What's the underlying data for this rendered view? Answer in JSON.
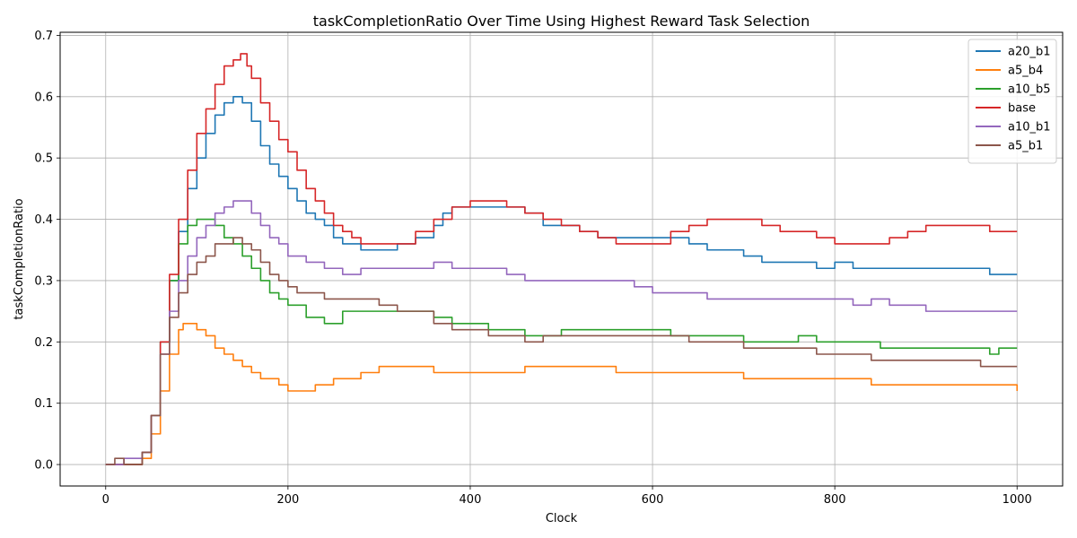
{
  "chart_data": {
    "type": "line",
    "title": "taskCompletionRatio Over Time Using Highest Reward Task Selection",
    "xlabel": "Clock",
    "ylabel": "taskCompletionRatio",
    "xlim": [
      -50,
      1050
    ],
    "ylim": [
      -0.035,
      0.705
    ],
    "xticks": [
      0,
      200,
      400,
      600,
      800,
      1000
    ],
    "yticks": [
      0.0,
      0.1,
      0.2,
      0.3,
      0.4,
      0.5,
      0.6,
      0.7
    ],
    "xtick_labels": [
      "0",
      "200",
      "400",
      "600",
      "800",
      "1000"
    ],
    "ytick_labels": [
      "0.0",
      "0.1",
      "0.2",
      "0.3",
      "0.4",
      "0.5",
      "0.6",
      "0.7"
    ],
    "grid": true,
    "legend_position": "top-right",
    "series": [
      {
        "name": "a20_b1",
        "color": "#1f77b4",
        "x": [
          0,
          30,
          40,
          50,
          60,
          70,
          80,
          90,
          100,
          110,
          120,
          130,
          140,
          145,
          150,
          160,
          170,
          180,
          190,
          200,
          210,
          220,
          230,
          240,
          250,
          260,
          270,
          280,
          290,
          300,
          320,
          340,
          360,
          370,
          380,
          400,
          420,
          440,
          460,
          480,
          500,
          520,
          540,
          560,
          600,
          620,
          640,
          660,
          680,
          700,
          720,
          740,
          760,
          780,
          800,
          820,
          840,
          860,
          900,
          940,
          960,
          970,
          1000
        ],
        "y": [
          0.0,
          0.0,
          0.02,
          0.08,
          0.2,
          0.3,
          0.38,
          0.45,
          0.5,
          0.54,
          0.57,
          0.59,
          0.6,
          0.6,
          0.59,
          0.56,
          0.52,
          0.49,
          0.47,
          0.45,
          0.43,
          0.41,
          0.4,
          0.39,
          0.37,
          0.36,
          0.36,
          0.35,
          0.35,
          0.35,
          0.36,
          0.37,
          0.39,
          0.41,
          0.42,
          0.42,
          0.42,
          0.42,
          0.41,
          0.39,
          0.39,
          0.38,
          0.37,
          0.37,
          0.37,
          0.37,
          0.36,
          0.35,
          0.35,
          0.34,
          0.33,
          0.33,
          0.33,
          0.32,
          0.33,
          0.32,
          0.32,
          0.32,
          0.32,
          0.32,
          0.32,
          0.31,
          0.31
        ]
      },
      {
        "name": "a5_b4",
        "color": "#ff7f0e",
        "x": [
          0,
          35,
          40,
          50,
          60,
          70,
          80,
          85,
          90,
          100,
          110,
          120,
          130,
          140,
          150,
          160,
          170,
          180,
          190,
          200,
          220,
          230,
          240,
          250,
          260,
          270,
          280,
          290,
          300,
          320,
          340,
          360,
          380,
          400,
          420,
          440,
          460,
          500,
          520,
          540,
          560,
          600,
          640,
          680,
          700,
          720,
          760,
          800,
          840,
          880,
          920,
          960,
          990,
          1000
        ],
        "y": [
          0.0,
          0.0,
          0.01,
          0.05,
          0.12,
          0.18,
          0.22,
          0.23,
          0.23,
          0.22,
          0.21,
          0.19,
          0.18,
          0.17,
          0.16,
          0.15,
          0.14,
          0.14,
          0.13,
          0.12,
          0.12,
          0.13,
          0.13,
          0.14,
          0.14,
          0.14,
          0.15,
          0.15,
          0.16,
          0.16,
          0.16,
          0.15,
          0.15,
          0.15,
          0.15,
          0.15,
          0.16,
          0.16,
          0.16,
          0.16,
          0.15,
          0.15,
          0.15,
          0.15,
          0.14,
          0.14,
          0.14,
          0.14,
          0.13,
          0.13,
          0.13,
          0.13,
          0.13,
          0.12
        ]
      },
      {
        "name": "a10_b5",
        "color": "#2ca02c",
        "x": [
          0,
          30,
          40,
          50,
          60,
          70,
          80,
          90,
          100,
          110,
          120,
          130,
          140,
          150,
          160,
          170,
          180,
          190,
          200,
          220,
          240,
          260,
          280,
          300,
          320,
          340,
          360,
          380,
          400,
          420,
          440,
          460,
          480,
          500,
          540,
          580,
          600,
          620,
          660,
          700,
          740,
          760,
          780,
          820,
          850,
          900,
          960,
          970,
          980,
          1000
        ],
        "y": [
          0.0,
          0.0,
          0.02,
          0.08,
          0.2,
          0.3,
          0.36,
          0.39,
          0.4,
          0.4,
          0.39,
          0.37,
          0.36,
          0.34,
          0.32,
          0.3,
          0.28,
          0.27,
          0.26,
          0.24,
          0.23,
          0.25,
          0.25,
          0.25,
          0.25,
          0.25,
          0.24,
          0.23,
          0.23,
          0.22,
          0.22,
          0.21,
          0.21,
          0.22,
          0.22,
          0.22,
          0.22,
          0.21,
          0.21,
          0.2,
          0.2,
          0.21,
          0.2,
          0.2,
          0.19,
          0.19,
          0.19,
          0.18,
          0.19,
          0.19
        ]
      },
      {
        "name": "base",
        "color": "#d62728",
        "x": [
          0,
          30,
          40,
          50,
          60,
          70,
          80,
          90,
          100,
          110,
          120,
          130,
          140,
          148,
          155,
          160,
          170,
          180,
          190,
          200,
          210,
          220,
          230,
          240,
          250,
          260,
          270,
          280,
          290,
          300,
          320,
          340,
          360,
          380,
          400,
          420,
          440,
          460,
          480,
          500,
          520,
          540,
          560,
          600,
          620,
          640,
          660,
          680,
          700,
          720,
          740,
          760,
          780,
          800,
          820,
          840,
          860,
          880,
          900,
          940,
          960,
          970,
          1000
        ],
        "y": [
          0.0,
          0.0,
          0.02,
          0.08,
          0.2,
          0.31,
          0.4,
          0.48,
          0.54,
          0.58,
          0.62,
          0.65,
          0.66,
          0.67,
          0.65,
          0.63,
          0.59,
          0.56,
          0.53,
          0.51,
          0.48,
          0.45,
          0.43,
          0.41,
          0.39,
          0.38,
          0.37,
          0.36,
          0.36,
          0.36,
          0.36,
          0.38,
          0.4,
          0.42,
          0.43,
          0.43,
          0.42,
          0.41,
          0.4,
          0.39,
          0.38,
          0.37,
          0.36,
          0.36,
          0.38,
          0.39,
          0.4,
          0.4,
          0.4,
          0.39,
          0.38,
          0.38,
          0.37,
          0.36,
          0.36,
          0.36,
          0.37,
          0.38,
          0.39,
          0.39,
          0.39,
          0.38,
          0.38
        ]
      },
      {
        "name": "a10_b1",
        "color": "#9467bd",
        "x": [
          0,
          20,
          30,
          40,
          50,
          60,
          70,
          80,
          90,
          100,
          110,
          120,
          130,
          140,
          150,
          160,
          170,
          180,
          190,
          200,
          220,
          240,
          260,
          280,
          300,
          320,
          340,
          360,
          380,
          400,
          420,
          440,
          460,
          480,
          520,
          560,
          580,
          600,
          620,
          660,
          700,
          720,
          760,
          800,
          820,
          840,
          860,
          900,
          940,
          980,
          1000
        ],
        "y": [
          0.0,
          0.01,
          0.01,
          0.02,
          0.08,
          0.18,
          0.25,
          0.3,
          0.34,
          0.37,
          0.39,
          0.41,
          0.42,
          0.43,
          0.43,
          0.41,
          0.39,
          0.37,
          0.36,
          0.34,
          0.33,
          0.32,
          0.31,
          0.32,
          0.32,
          0.32,
          0.32,
          0.33,
          0.32,
          0.32,
          0.32,
          0.31,
          0.3,
          0.3,
          0.3,
          0.3,
          0.29,
          0.28,
          0.28,
          0.27,
          0.27,
          0.27,
          0.27,
          0.27,
          0.26,
          0.27,
          0.26,
          0.25,
          0.25,
          0.25,
          0.25
        ]
      },
      {
        "name": "a5_b1",
        "color": "#8c564b",
        "x": [
          0,
          10,
          20,
          30,
          40,
          50,
          60,
          70,
          80,
          90,
          100,
          110,
          120,
          130,
          140,
          150,
          160,
          170,
          180,
          190,
          200,
          210,
          220,
          240,
          260,
          280,
          300,
          320,
          340,
          360,
          380,
          400,
          420,
          440,
          460,
          480,
          500,
          560,
          600,
          620,
          640,
          680,
          700,
          740,
          780,
          820,
          840,
          880,
          920,
          950,
          960,
          1000
        ],
        "y": [
          0.0,
          0.01,
          0.0,
          0.0,
          0.02,
          0.08,
          0.18,
          0.24,
          0.28,
          0.31,
          0.33,
          0.34,
          0.36,
          0.36,
          0.37,
          0.36,
          0.35,
          0.33,
          0.31,
          0.3,
          0.29,
          0.28,
          0.28,
          0.27,
          0.27,
          0.27,
          0.26,
          0.25,
          0.25,
          0.23,
          0.22,
          0.22,
          0.21,
          0.21,
          0.2,
          0.21,
          0.21,
          0.21,
          0.21,
          0.21,
          0.2,
          0.2,
          0.19,
          0.19,
          0.18,
          0.18,
          0.17,
          0.17,
          0.17,
          0.17,
          0.16,
          0.16
        ]
      }
    ]
  }
}
